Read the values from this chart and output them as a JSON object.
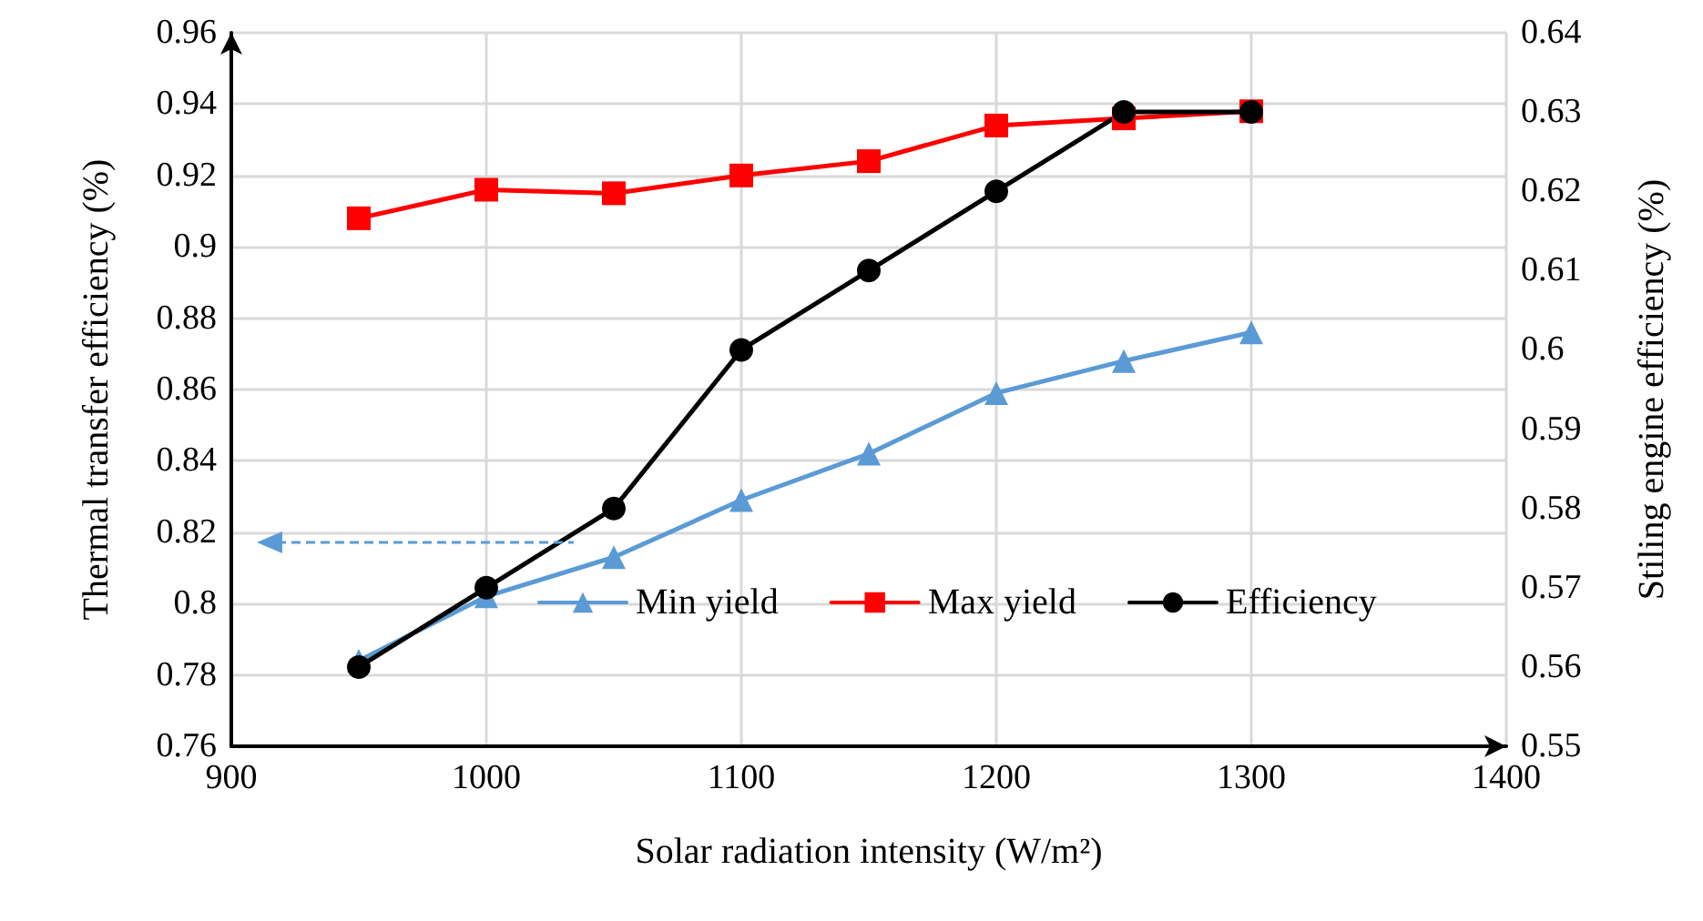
{
  "chart_data": {
    "type": "line",
    "xlabel": "Solar radiation intensity (W/m²)",
    "ylabel": "Thermal transfer efficiency (%)",
    "y2label": "Stiling engine efficiency (%)",
    "x": [
      950,
      1000,
      1050,
      1100,
      1150,
      1200,
      1250,
      1300
    ],
    "series": [
      {
        "name": "Min yield",
        "color": "#5b9bd5",
        "marker": "triangle",
        "values": [
          0.784,
          0.802,
          0.813,
          0.829,
          0.842,
          0.859,
          0.868,
          0.876
        ]
      },
      {
        "name": "Max yield",
        "color": "#ff0000",
        "marker": "square",
        "values": [
          0.908,
          0.916,
          0.915,
          0.92,
          0.924,
          0.934,
          0.936,
          0.938
        ]
      },
      {
        "name": "Efficiency",
        "color": "#000000",
        "marker": "circle",
        "axis": "y2",
        "values": [
          0.56,
          0.57,
          0.58,
          0.6,
          0.61,
          0.62,
          0.63,
          0.63
        ]
      }
    ],
    "xlim": [
      900,
      1400
    ],
    "xticks": [
      900,
      1000,
      1100,
      1200,
      1300,
      1400
    ],
    "ylim": [
      0.76,
      0.96
    ],
    "yticks": [
      0.76,
      0.78,
      0.8,
      0.82,
      0.84,
      0.86,
      0.88,
      0.9,
      0.92,
      0.94,
      0.96
    ],
    "y2lim": [
      0.55,
      0.64
    ],
    "y2ticks": [
      0.55,
      0.56,
      0.57,
      0.58,
      0.59,
      0.6,
      0.61,
      0.62,
      0.63,
      0.64
    ],
    "grid": true,
    "legend": "bottom",
    "line_style": "solid"
  }
}
